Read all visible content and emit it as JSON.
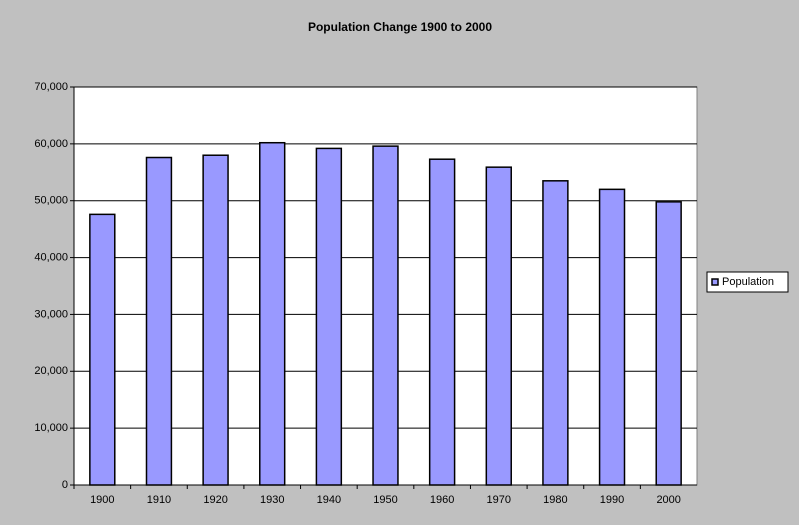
{
  "chart_data": {
    "type": "bar",
    "title": "Population Change 1900 to 2000",
    "categories": [
      "1900",
      "1910",
      "1920",
      "1930",
      "1940",
      "1950",
      "1960",
      "1970",
      "1980",
      "1990",
      "2000"
    ],
    "series": [
      {
        "name": "Population",
        "color": "#9999ff",
        "values": [
          47600,
          57600,
          58000,
          60200,
          59200,
          59600,
          57300,
          55900,
          53500,
          52000,
          49800
        ]
      }
    ],
    "ylim": [
      0,
      70000
    ],
    "yticks": [
      0,
      {
        "value": 10000,
        "label": "10,000"
      },
      {
        "value": 20000,
        "label": "20,000"
      },
      {
        "value": 30000,
        "label": "30,000"
      },
      {
        "value": 40000,
        "label": "40,000"
      },
      {
        "value": 50000,
        "label": "50,000"
      },
      {
        "value": 60000,
        "label": "60,000"
      },
      {
        "value": 70000,
        "label": "70,000"
      }
    ],
    "grid": true,
    "legend": "right"
  }
}
